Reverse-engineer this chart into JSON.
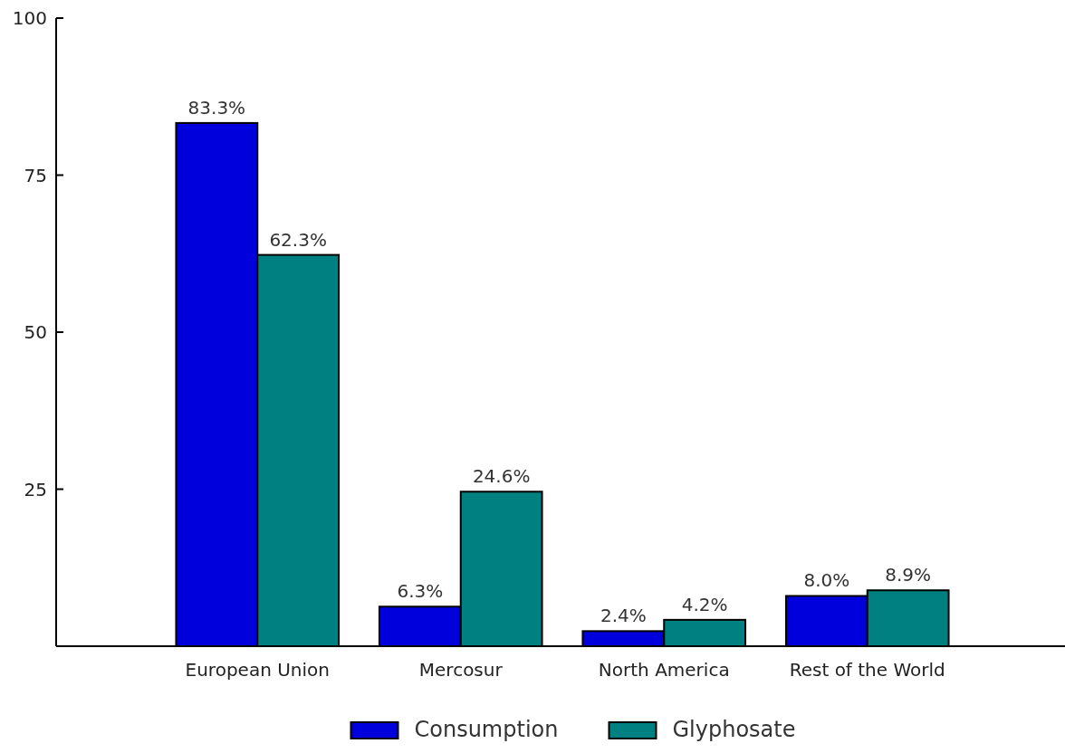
{
  "chart_data": {
    "type": "bar",
    "categories": [
      "European Union",
      "Mercosur",
      "North America",
      "Rest of the World"
    ],
    "series": [
      {
        "name": "Consumption",
        "color": "#0000dd",
        "values": [
          83.3,
          6.3,
          2.4,
          8.0
        ],
        "value_labels": [
          "83.3%",
          "6.3%",
          "2.4%",
          "8.0%"
        ]
      },
      {
        "name": "Glyphosate",
        "color": "#008080",
        "values": [
          62.3,
          24.6,
          4.2,
          8.9
        ],
        "value_labels": [
          "62.3%",
          "24.6%",
          "4.2%",
          "8.9%"
        ]
      }
    ],
    "ylim": [
      0,
      100
    ],
    "yticks": [
      25,
      50,
      75,
      100
    ],
    "grid": false,
    "legend": "bottom"
  }
}
